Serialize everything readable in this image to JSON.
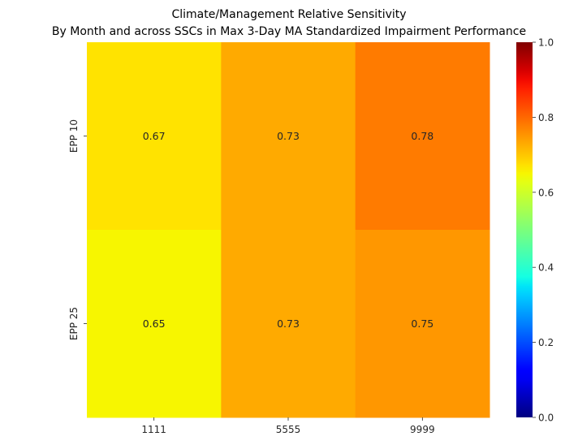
{
  "chart_data": {
    "type": "heatmap",
    "title": [
      "Climate/Management Relative Sensitivity",
      "By Month and across SSCs in Max 3-Day MA Standardized Impairment Performance"
    ],
    "xlabel": "",
    "ylabel": "",
    "x_categories": [
      "1111",
      "5555",
      "9999"
    ],
    "y_categories": [
      "EPP 10",
      "EPP 25"
    ],
    "values": [
      [
        0.67,
        0.73,
        0.78
      ],
      [
        0.65,
        0.73,
        0.75
      ]
    ],
    "value_labels": [
      [
        "0.67",
        "0.73",
        "0.78"
      ],
      [
        "0.65",
        "0.73",
        "0.75"
      ]
    ],
    "colormap": "jet",
    "vmin": 0.0,
    "vmax": 1.0,
    "colorbar_ticks": [
      0.0,
      0.2,
      0.4,
      0.6,
      0.8,
      1.0
    ],
    "colorbar_tick_labels": [
      "0.0",
      "0.2",
      "0.4",
      "0.6",
      "0.8",
      "1.0"
    ],
    "annotation_color": "#262626",
    "grid": false,
    "colorbar_placement": "right"
  }
}
